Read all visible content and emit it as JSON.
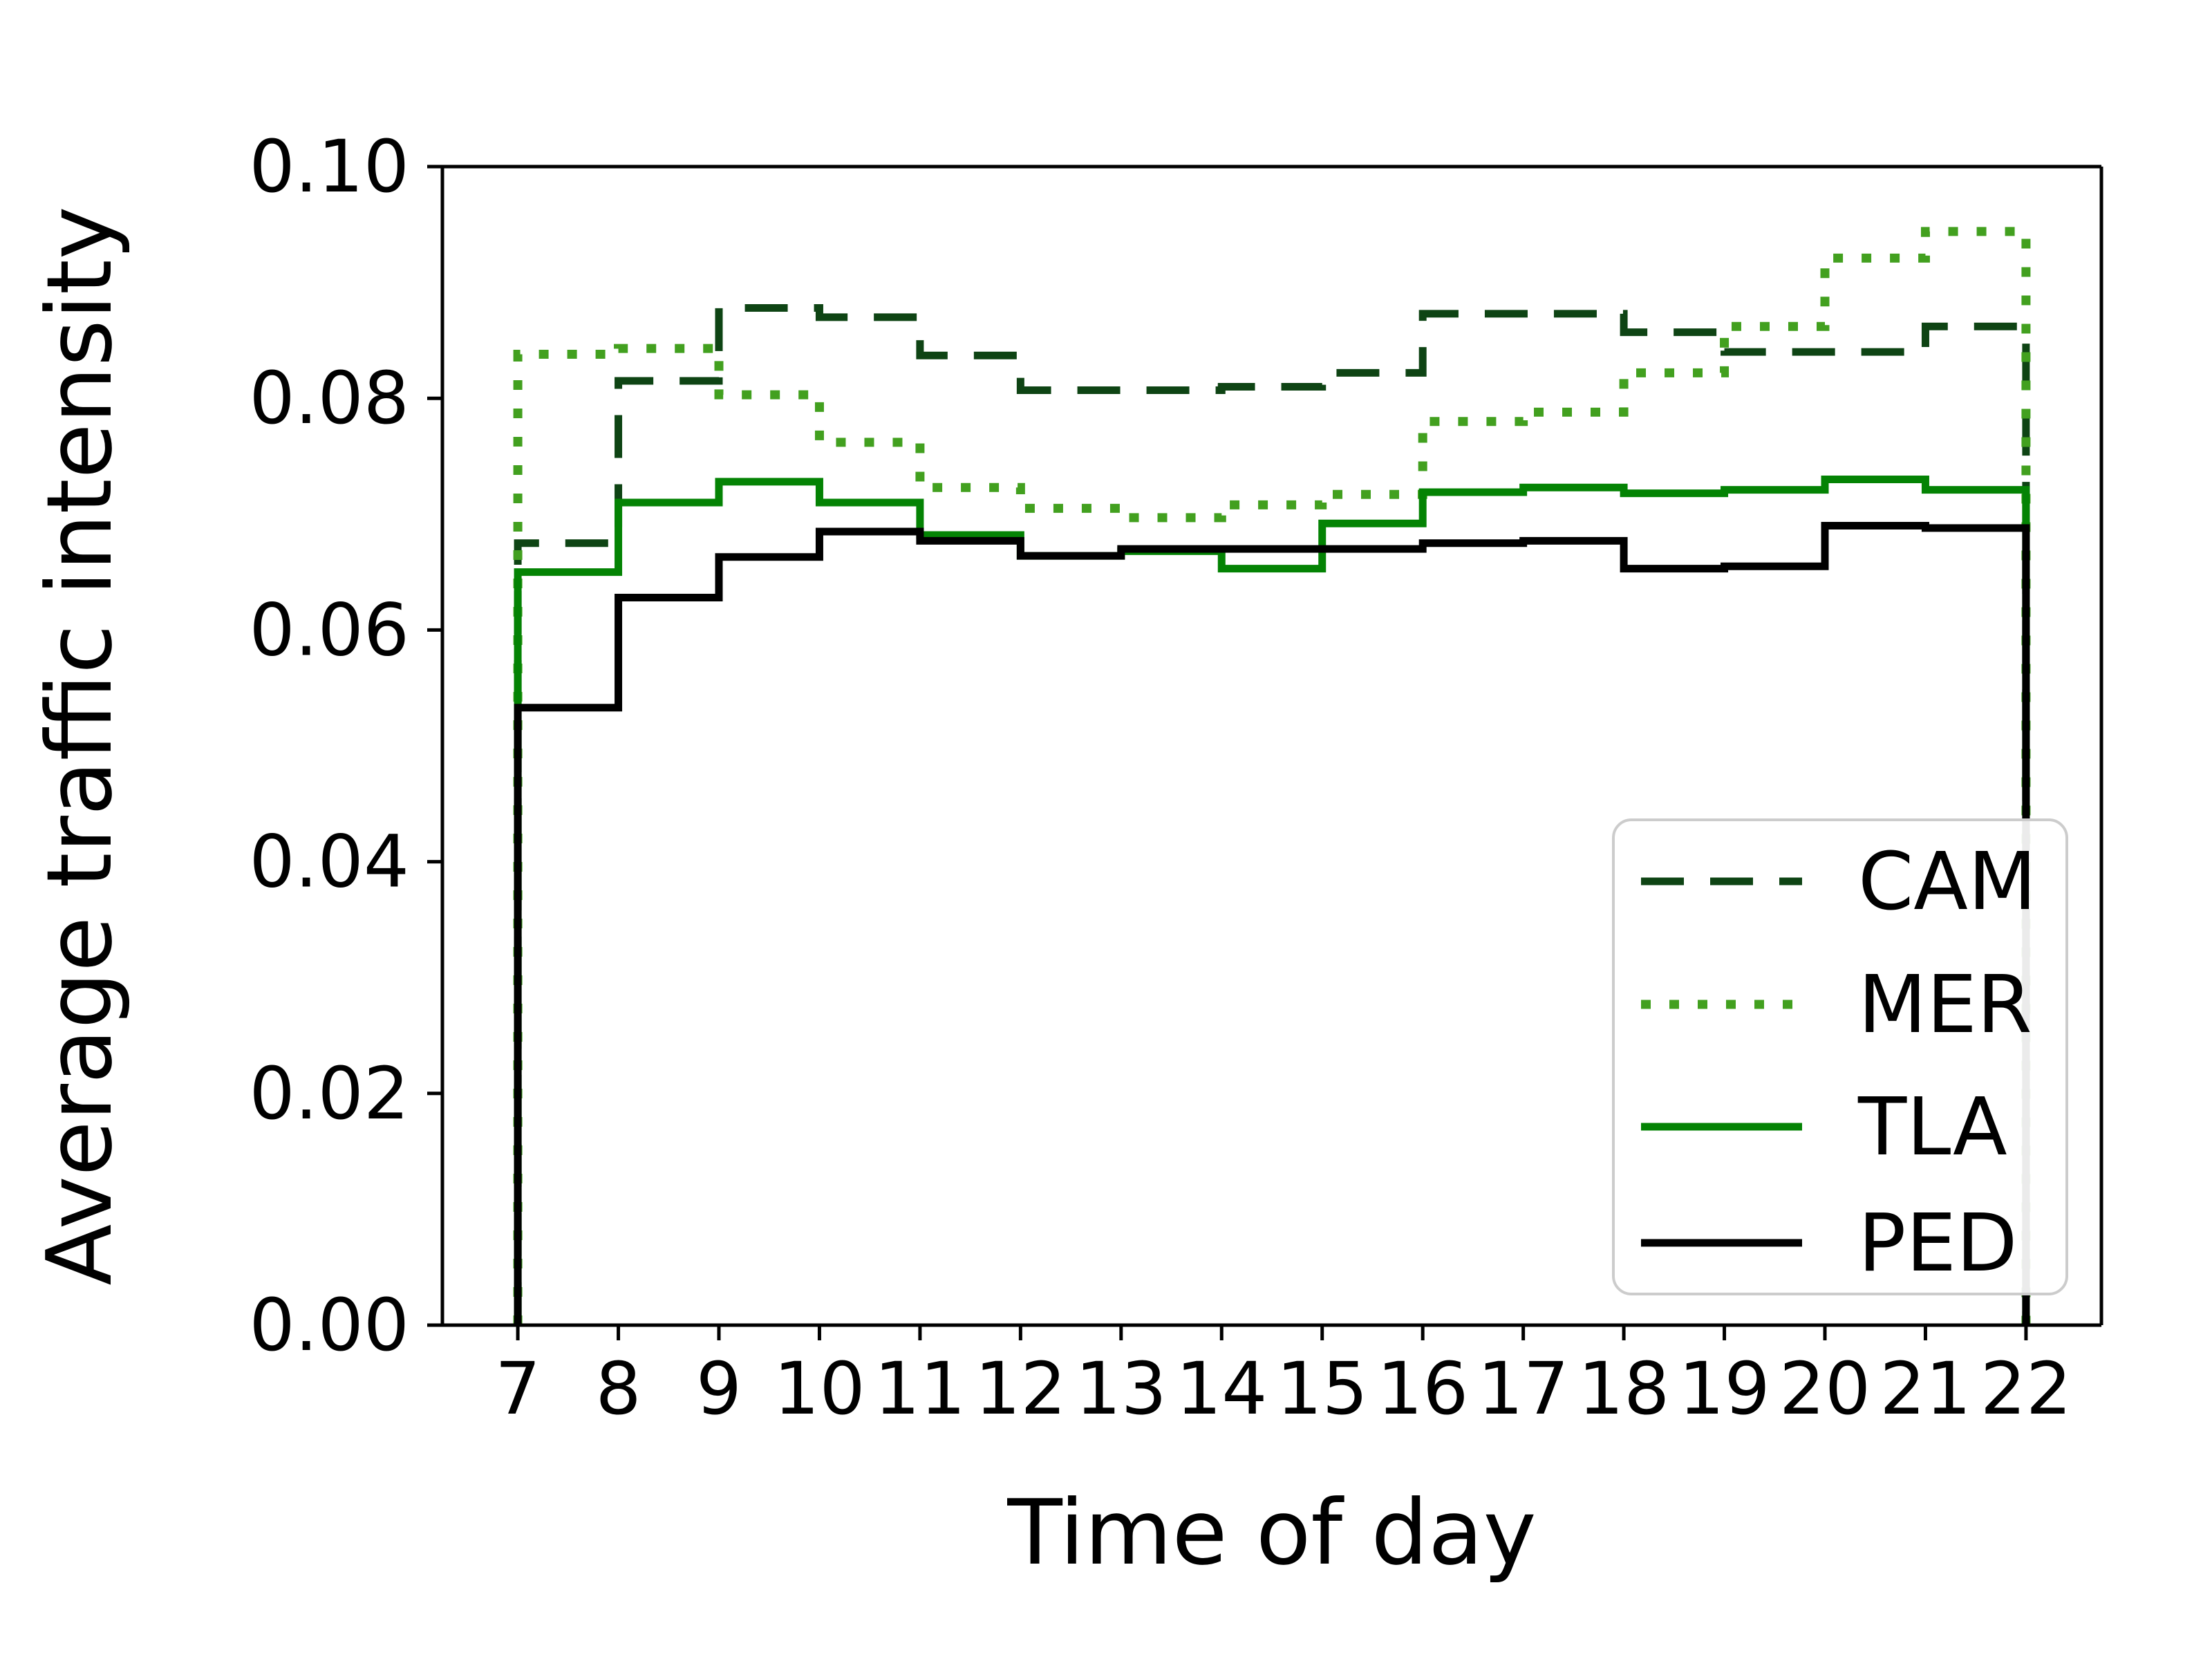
{
  "chart_data": {
    "type": "line",
    "subtype": "step-histogram",
    "title": "",
    "xlabel": "Time of day",
    "ylabel": "Average traffic intensity",
    "x_bin_edges": [
      7,
      8,
      9,
      10,
      11,
      12,
      13,
      14,
      15,
      16,
      17,
      18,
      19,
      20,
      21,
      22
    ],
    "xticks": [
      "7",
      "8",
      "9",
      "10",
      "11",
      "12",
      "13",
      "14",
      "15",
      "16",
      "17",
      "18",
      "19",
      "20",
      "21",
      "22"
    ],
    "yticks": [
      "0.00",
      "0.02",
      "0.04",
      "0.06",
      "0.08",
      "0.10"
    ],
    "ytick_values": [
      0.0,
      0.02,
      0.04,
      0.06,
      0.08,
      0.1
    ],
    "ylim": [
      0.0,
      0.1
    ],
    "xlim": [
      6.25,
      22.75
    ],
    "grid": false,
    "legend_position": "lower right",
    "series": [
      {
        "name": "CAM",
        "color": "#0e4414",
        "linestyle": "dashed",
        "values": [
          0.0675,
          0.0815,
          0.0878,
          0.087,
          0.0837,
          0.0807,
          0.0807,
          0.081,
          0.0822,
          0.0873,
          0.0873,
          0.0857,
          0.084,
          0.084,
          0.0862
        ]
      },
      {
        "name": "MER",
        "color": "#42a01f",
        "linestyle": "dotted",
        "values": [
          0.0838,
          0.0843,
          0.0803,
          0.0762,
          0.0723,
          0.0705,
          0.0697,
          0.0708,
          0.0717,
          0.078,
          0.0788,
          0.0822,
          0.0862,
          0.0921,
          0.0944
        ]
      },
      {
        "name": "TLA",
        "color": "#048304",
        "linestyle": "solid",
        "values": [
          0.065,
          0.071,
          0.0728,
          0.071,
          0.0682,
          0.0664,
          0.0668,
          0.0653,
          0.0692,
          0.0719,
          0.0723,
          0.0718,
          0.0721,
          0.073,
          0.0721
        ]
      },
      {
        "name": "PED",
        "color": "#000000",
        "linestyle": "solid",
        "values": [
          0.0533,
          0.0628,
          0.0663,
          0.0685,
          0.0677,
          0.0664,
          0.067,
          0.067,
          0.067,
          0.0675,
          0.0677,
          0.0653,
          0.0655,
          0.069,
          0.0688
        ]
      }
    ]
  }
}
